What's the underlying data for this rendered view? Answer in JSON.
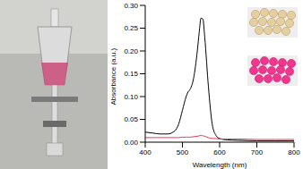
{
  "chart_data": {
    "type": "line",
    "x_label": "Wavelength (nm)",
    "y_label": "Absorbance (a.u.)",
    "x": [
      400,
      420,
      440,
      460,
      480,
      490,
      500,
      510,
      515,
      520,
      530,
      540,
      545,
      550,
      555,
      560,
      570,
      580,
      590,
      600,
      620,
      650,
      700,
      750,
      800
    ],
    "series": [
      {
        "color": "#000000",
        "values": [
          0.022,
          0.02,
          0.018,
          0.018,
          0.025,
          0.04,
          0.07,
          0.1,
          0.11,
          0.115,
          0.14,
          0.2,
          0.24,
          0.272,
          0.27,
          0.23,
          0.12,
          0.04,
          0.015,
          0.008,
          0.005,
          0.004,
          0.003,
          0.003,
          0.003
        ]
      },
      {
        "color": "#e8384f",
        "values": [
          0.01,
          0.01,
          0.01,
          0.01,
          0.01,
          0.01,
          0.011,
          0.011,
          0.011,
          0.011,
          0.012,
          0.013,
          0.014,
          0.015,
          0.014,
          0.013,
          0.01,
          0.008,
          0.008,
          0.007,
          0.007,
          0.007,
          0.006,
          0.006,
          0.006
        ]
      }
    ],
    "xlim": [
      400,
      800
    ],
    "xticks": [
      400,
      500,
      600,
      700,
      800
    ],
    "ylim": [
      0,
      0.3
    ],
    "yticks": [
      {
        "value": 0,
        "label": "0.00"
      },
      {
        "value": 0.05,
        "label": "0.05"
      },
      {
        "value": 0.1,
        "label": "0.10"
      },
      {
        "value": 0.15,
        "label": "0.15"
      },
      {
        "value": 0.2,
        "label": "0.20"
      },
      {
        "value": 0.25,
        "label": "0.25"
      },
      {
        "value": 0.3,
        "label": "0.30"
      }
    ]
  }
}
